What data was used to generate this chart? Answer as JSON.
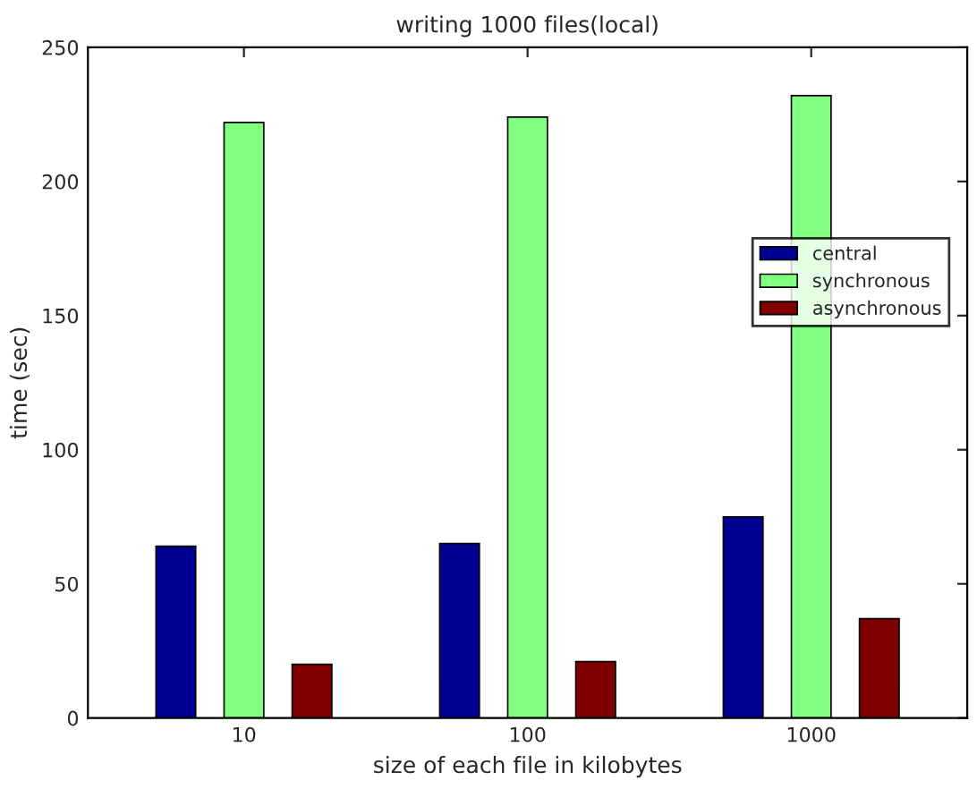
{
  "chart_data": {
    "type": "bar",
    "title": "writing 1000 files(local)",
    "xlabel": "size of each file in kilobytes",
    "ylabel": "time (sec)",
    "categories": [
      "10",
      "100",
      "1000"
    ],
    "series": [
      {
        "name": "central",
        "color": "#000090",
        "values": [
          64,
          65,
          75
        ]
      },
      {
        "name": "synchronous",
        "color": "#80ff80",
        "values": [
          222,
          224,
          232
        ]
      },
      {
        "name": "asynchronous",
        "color": "#800000",
        "values": [
          20,
          21,
          37
        ]
      }
    ],
    "ylim": [
      0,
      250
    ],
    "yticks": [
      0,
      50,
      100,
      150,
      200,
      250
    ],
    "legend": "center right",
    "grid": false
  }
}
